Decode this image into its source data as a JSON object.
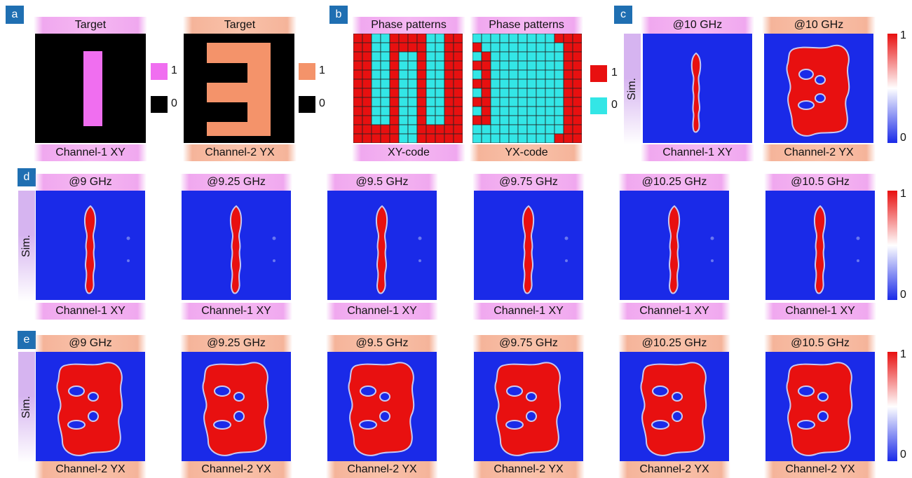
{
  "panels": {
    "a": {
      "badge": "a",
      "top_left": "Target",
      "top_right": "Target",
      "bottom_left": "Channel-1 XY",
      "bottom_right": "Channel-2 YX",
      "legend_one": "1",
      "legend_zero": "0"
    },
    "b": {
      "badge": "b",
      "top_left": "Phase patterns",
      "top_right": "Phase patterns",
      "bottom_left": "XY-code",
      "bottom_right": "YX-code",
      "legend_one": "1",
      "legend_zero": "0"
    },
    "c": {
      "badge": "c",
      "top_left": "@10 GHz",
      "top_right": "@10 GHz",
      "bottom_left": "Channel-1 XY",
      "bottom_right": "Channel-2 YX",
      "side": "Sim.",
      "cbar_max": "1",
      "cbar_min": "0"
    },
    "d": {
      "badge": "d",
      "side": "Sim.",
      "cbar_max": "1",
      "cbar_min": "0",
      "tops": [
        "@9 GHz",
        "@9.25 GHz",
        "@9.5 GHz",
        "@9.75 GHz",
        "@10.25 GHz",
        "@10.5 GHz"
      ],
      "bottoms": [
        "Channel-1 XY",
        "Channel-1 XY",
        "Channel-1 XY",
        "Channel-1 XY",
        "Channel-1 XY",
        "Channel-1 XY"
      ]
    },
    "e": {
      "badge": "e",
      "side": "Sim.",
      "cbar_max": "1",
      "cbar_min": "0",
      "tops": [
        "@9 GHz",
        "@9.25 GHz",
        "@9.5 GHz",
        "@9.75 GHz",
        "@10.25 GHz",
        "@10.5 GHz"
      ],
      "bottoms": [
        "Channel-2 YX",
        "Channel-2 YX",
        "Channel-2 YX",
        "Channel-2 YX",
        "Channel-2 YX",
        "Channel-2 YX"
      ]
    }
  },
  "colors": {
    "pink": "#f06ef0",
    "salmon": "#f4936a",
    "red": "#e81010",
    "cyan": "#33e6e6",
    "blue": "#1a2ae8",
    "black": "#000000"
  }
}
